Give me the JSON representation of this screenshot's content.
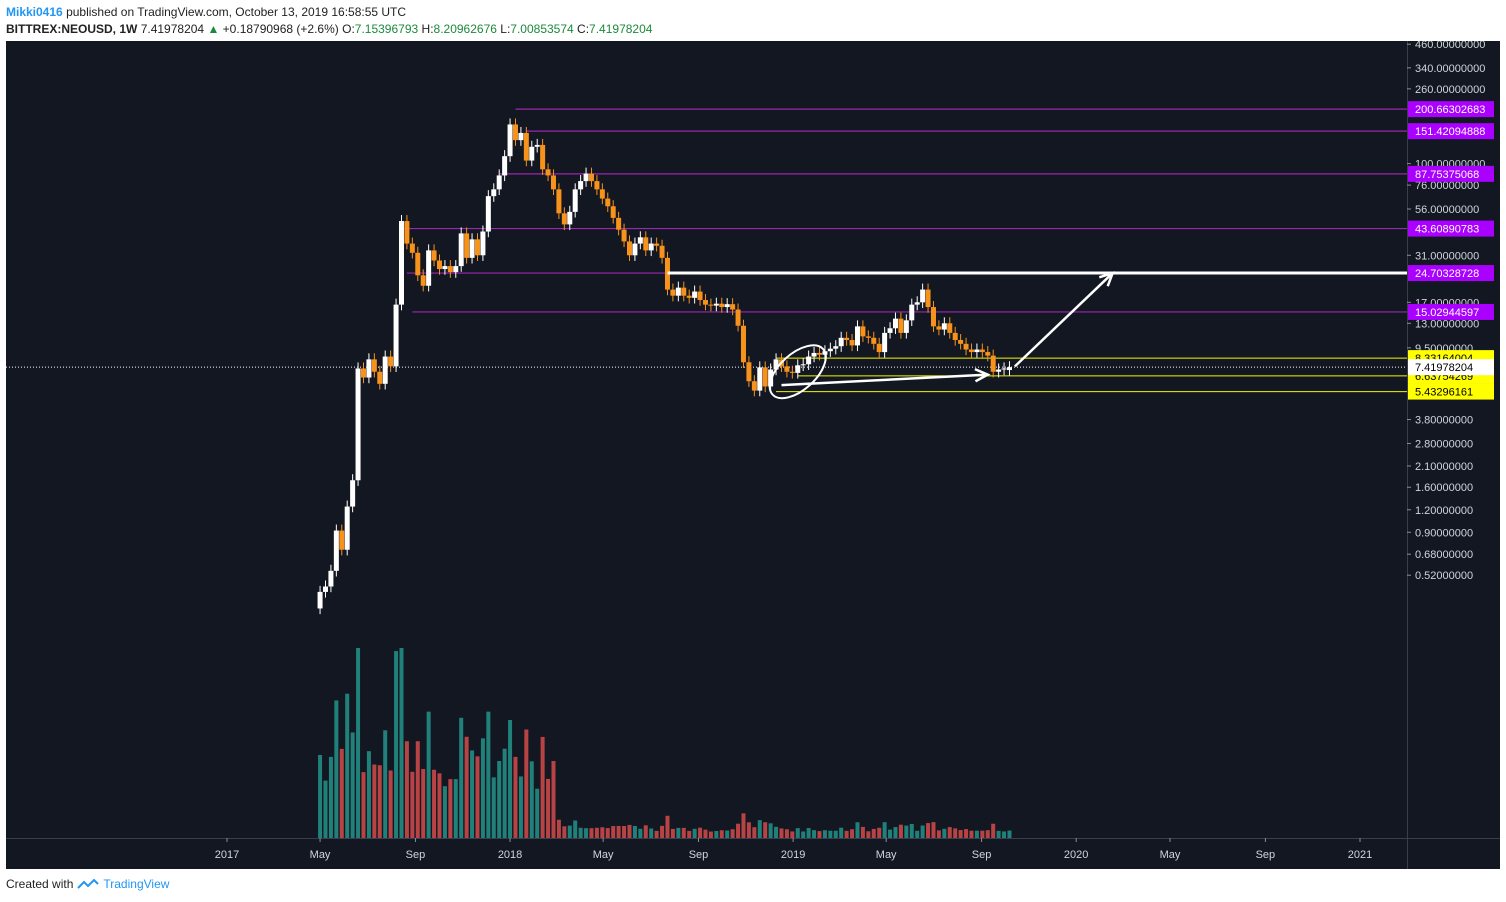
{
  "header": {
    "user": "Mikki0416",
    "published_text": "published on TradingView.com, October 13, 2019 16:58:55 UTC",
    "symbol": "BITTREX:NEOUSD, 1W",
    "last": "7.41978204",
    "change": "+0.18790968 (+2.6%)",
    "o_label": "O:",
    "o_value": "7.15396793",
    "h_label": "H:",
    "h_value": "8.20962676",
    "l_label": "L:",
    "l_value": "7.00853574",
    "c_label": "C:",
    "c_value": "7.41978204"
  },
  "footer": {
    "created": "Created with",
    "brand": "TradingView"
  },
  "colors": {
    "background": "#131722",
    "up": "#ffffff",
    "down": "#f7931a",
    "vol_up": "#26a69a",
    "vol_down": "#ef5350",
    "level_purple": "#9c27b0",
    "level_yellow": "#f5f500",
    "annotation": "#ffffff"
  },
  "chart_data": {
    "type": "candlestick",
    "scale": "log",
    "y_ticks": [
      "460.00000000",
      "340.00000000",
      "260.00000000",
      "100.00000000",
      "76.00000000",
      "56.00000000",
      "31.00000000",
      "17.00000000",
      "13.00000000",
      "9.50000000",
      "3.80000000",
      "2.80000000",
      "2.10000000",
      "1.60000000",
      "1.20000000",
      "0.90000000",
      "0.68000000",
      "0.52000000"
    ],
    "y_tick_values": [
      460,
      340,
      260,
      100,
      76,
      56,
      31,
      17,
      13,
      9.5,
      3.8,
      2.8,
      2.1,
      1.6,
      1.2,
      0.9,
      0.68,
      0.52
    ],
    "x_ticks": [
      "2017",
      "May",
      "Sep",
      "2018",
      "May",
      "Sep",
      "2019",
      "May",
      "Sep",
      "2020",
      "May",
      "Sep",
      "2021"
    ],
    "x_tick_dates": [
      "2017-01-01",
      "2017-05-01",
      "2017-09-01",
      "2018-01-01",
      "2018-05-01",
      "2018-09-01",
      "2019-01-01",
      "2019-05-01",
      "2019-09-01",
      "2020-01-01",
      "2020-05-01",
      "2020-09-01",
      "2021-01-01"
    ],
    "current_price": {
      "label": "7.41978204",
      "value": 7.41978204
    },
    "price_levels": [
      {
        "label": "200.66302683",
        "value": 200.66302683,
        "color": "purple",
        "start": "2018-01-08"
      },
      {
        "label": "151.42094888",
        "value": 151.42094888,
        "color": "purple",
        "start": "2018-01-22"
      },
      {
        "label": "87.75375068",
        "value": 87.75375068,
        "color": "purple",
        "start": "2017-12-18"
      },
      {
        "label": "43.60890783",
        "value": 43.60890783,
        "color": "purple",
        "start": "2017-08-14"
      },
      {
        "label": "24.70328728",
        "value": 24.70328728,
        "color": "purple",
        "start": "2017-08-21"
      },
      {
        "label": "15.02944597",
        "value": 15.02944597,
        "color": "purple",
        "start": "2017-08-28"
      },
      {
        "label": "8.33164004",
        "value": 8.33164004,
        "color": "yellow",
        "start": "2018-12-10"
      },
      {
        "label": "6.63754269",
        "value": 6.63754269,
        "color": "yellow",
        "start": "2019-01-07"
      },
      {
        "label": "5.43296161",
        "value": 5.43296161,
        "color": "yellow",
        "start": "2018-12-10"
      }
    ],
    "candles": [
      [
        "2017-05-01",
        0.34,
        0.42
      ],
      [
        "2017-05-08",
        0.42,
        0.45
      ],
      [
        "2017-05-15",
        0.45,
        0.55
      ],
      [
        "2017-05-22",
        0.55,
        0.92
      ],
      [
        "2017-05-29",
        0.92,
        0.72
      ],
      [
        "2017-06-05",
        0.72,
        1.25
      ],
      [
        "2017-06-12",
        1.25,
        1.75
      ],
      [
        "2017-06-19",
        1.75,
        7.3
      ],
      [
        "2017-06-26",
        7.3,
        6.5
      ],
      [
        "2017-07-03",
        6.5,
        8.2
      ],
      [
        "2017-07-10",
        8.2,
        7.0
      ],
      [
        "2017-07-17",
        7.0,
        6.0
      ],
      [
        "2017-07-24",
        6.0,
        8.5
      ],
      [
        "2017-07-31",
        8.5,
        7.5
      ],
      [
        "2017-08-07",
        7.5,
        16.5
      ],
      [
        "2017-08-14",
        16.5,
        48
      ],
      [
        "2017-08-21",
        48,
        36
      ],
      [
        "2017-08-28",
        36,
        32
      ],
      [
        "2017-09-04",
        32,
        24
      ],
      [
        "2017-09-11",
        24,
        21
      ],
      [
        "2017-09-18",
        21,
        33
      ],
      [
        "2017-09-25",
        33,
        29
      ],
      [
        "2017-10-02",
        29,
        26
      ],
      [
        "2017-10-09",
        26,
        27
      ],
      [
        "2017-10-16",
        27,
        25
      ],
      [
        "2017-10-23",
        25,
        27
      ],
      [
        "2017-10-30",
        27,
        41
      ],
      [
        "2017-11-06",
        41,
        30
      ],
      [
        "2017-11-13",
        30,
        38
      ],
      [
        "2017-11-20",
        38,
        31
      ],
      [
        "2017-11-27",
        31,
        42
      ],
      [
        "2017-12-04",
        42,
        66
      ],
      [
        "2017-12-11",
        66,
        72
      ],
      [
        "2017-12-18",
        72,
        86
      ],
      [
        "2017-12-25",
        86,
        110
      ],
      [
        "2018-01-01",
        110,
        165
      ],
      [
        "2018-01-08",
        165,
        135
      ],
      [
        "2018-01-15",
        135,
        148
      ],
      [
        "2018-01-22",
        148,
        104
      ],
      [
        "2018-01-29",
        104,
        124
      ],
      [
        "2018-02-05",
        124,
        127
      ],
      [
        "2018-02-12",
        127,
        93
      ],
      [
        "2018-02-19",
        93,
        86
      ],
      [
        "2018-02-26",
        86,
        72
      ],
      [
        "2018-03-05",
        72,
        53
      ],
      [
        "2018-03-12",
        53,
        46
      ],
      [
        "2018-03-19",
        46,
        54
      ],
      [
        "2018-03-26",
        54,
        72
      ],
      [
        "2018-04-02",
        72,
        80
      ],
      [
        "2018-04-09",
        80,
        88
      ],
      [
        "2018-04-16",
        88,
        80
      ],
      [
        "2018-04-23",
        80,
        72
      ],
      [
        "2018-04-30",
        72,
        64
      ],
      [
        "2018-05-07",
        64,
        58
      ],
      [
        "2018-05-14",
        58,
        50
      ],
      [
        "2018-05-21",
        50,
        43
      ],
      [
        "2018-05-28",
        43,
        37
      ],
      [
        "2018-06-04",
        37,
        31
      ],
      [
        "2018-06-11",
        31,
        36
      ],
      [
        "2018-06-18",
        36,
        39
      ],
      [
        "2018-06-25",
        39,
        33
      ],
      [
        "2018-07-02",
        33,
        36
      ],
      [
        "2018-07-09",
        36,
        35
      ],
      [
        "2018-07-16",
        35,
        30
      ],
      [
        "2018-07-23",
        30,
        20
      ],
      [
        "2018-07-30",
        20,
        18.5
      ],
      [
        "2018-08-06",
        18.5,
        20.5
      ],
      [
        "2018-08-13",
        20.5,
        18.5
      ],
      [
        "2018-08-20",
        18.5,
        18
      ],
      [
        "2018-08-27",
        18,
        19.5
      ],
      [
        "2018-09-03",
        19.5,
        17.5
      ],
      [
        "2018-09-10",
        17.5,
        16.5
      ],
      [
        "2018-09-17",
        16.5,
        16.3
      ],
      [
        "2018-09-24",
        16.3,
        16.7
      ],
      [
        "2018-10-01",
        16.7,
        16.0
      ],
      [
        "2018-10-08",
        16.0,
        16.6
      ],
      [
        "2018-10-15",
        16.6,
        15.5
      ],
      [
        "2018-10-22",
        15.5,
        12.6
      ],
      [
        "2018-10-29",
        12.6,
        7.9
      ],
      [
        "2018-11-05",
        7.9,
        6.2
      ],
      [
        "2018-11-12",
        6.2,
        5.5
      ],
      [
        "2018-11-19",
        5.5,
        7.4
      ],
      [
        "2018-11-26",
        7.4,
        5.8
      ],
      [
        "2018-12-03",
        5.8,
        7.2
      ],
      [
        "2018-12-10",
        7.2,
        8.2
      ],
      [
        "2018-12-17",
        8.2,
        7.5
      ],
      [
        "2018-12-24",
        7.5,
        7.0
      ],
      [
        "2018-12-31",
        7.0,
        6.9
      ],
      [
        "2019-01-07",
        6.9,
        7.6
      ],
      [
        "2019-01-14",
        7.6,
        7.7
      ],
      [
        "2019-01-21",
        7.7,
        8.5
      ],
      [
        "2019-01-28",
        8.5,
        8.9
      ],
      [
        "2019-02-04",
        8.9,
        8.7
      ],
      [
        "2019-02-11",
        8.7,
        9.1
      ],
      [
        "2019-02-18",
        9.1,
        9.4
      ],
      [
        "2019-02-25",
        9.4,
        9.7
      ],
      [
        "2019-03-04",
        9.7,
        10.8
      ],
      [
        "2019-03-11",
        10.8,
        10.5
      ],
      [
        "2019-03-18",
        10.5,
        9.8
      ],
      [
        "2019-03-25",
        9.8,
        12.5
      ],
      [
        "2019-04-01",
        12.5,
        11.0
      ],
      [
        "2019-04-08",
        11.0,
        10.8
      ],
      [
        "2019-04-15",
        10.8,
        10.0
      ],
      [
        "2019-04-22",
        10.0,
        9.0
      ],
      [
        "2019-04-29",
        9.0,
        11.5
      ],
      [
        "2019-05-06",
        11.5,
        12.2
      ],
      [
        "2019-05-13",
        12.2,
        13.8
      ],
      [
        "2019-05-20",
        13.8,
        11.5
      ],
      [
        "2019-05-27",
        11.5,
        13.5
      ],
      [
        "2019-06-03",
        13.5,
        16.5
      ],
      [
        "2019-06-10",
        16.5,
        17.0
      ],
      [
        "2019-06-17",
        17.0,
        20.0
      ],
      [
        "2019-06-24",
        20.0,
        16.0
      ],
      [
        "2019-07-01",
        16.0,
        12.5
      ],
      [
        "2019-07-08",
        12.5,
        12.0
      ],
      [
        "2019-07-15",
        12.0,
        13.0
      ],
      [
        "2019-07-22",
        13.0,
        11.5
      ],
      [
        "2019-07-29",
        11.5,
        10.5
      ],
      [
        "2019-08-05",
        10.5,
        10.0
      ],
      [
        "2019-08-12",
        10.0,
        9.3
      ],
      [
        "2019-08-19",
        9.3,
        9.0
      ],
      [
        "2019-08-26",
        9.0,
        9.3
      ],
      [
        "2019-09-02",
        9.3,
        9.0
      ],
      [
        "2019-09-09",
        9.0,
        8.6
      ],
      [
        "2019-09-16",
        8.6,
        7.0
      ],
      [
        "2019-09-23",
        7.0,
        7.2
      ],
      [
        "2019-09-30",
        7.2,
        7.3
      ],
      [
        "2019-10-07",
        7.15396793,
        7.41978204
      ]
    ],
    "annotations": [
      {
        "type": "horizontal_line",
        "value": 24.70328728,
        "from": "2018-07-23",
        "to": "2019-10-07"
      },
      {
        "type": "ellipse",
        "center_date": "2019-01-07",
        "center_value": 7.0
      },
      {
        "type": "arrow",
        "from_date": "2018-12-17",
        "from_value": 5.9,
        "to_date": "2019-09-09",
        "to_value": 6.75
      },
      {
        "type": "arrow",
        "from_date": "2019-10-14",
        "from_value": 7.5,
        "to_date": "2020-02-17",
        "to_value": 24.70328728
      }
    ]
  }
}
